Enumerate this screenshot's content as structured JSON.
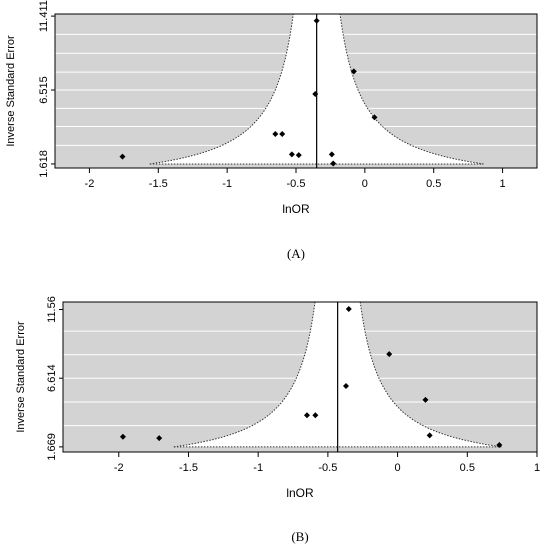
{
  "chart_data": [
    {
      "type": "scatter",
      "panel_label": "(A)",
      "xlabel": "lnOR",
      "ylabel": "Inverse Standard Error",
      "xlim": [
        -2.25,
        1.25
      ],
      "ylim": [
        1.35,
        11.55
      ],
      "xticks": [
        -2,
        -1.5,
        -1,
        -0.5,
        0,
        0.5,
        1
      ],
      "xtick_labels": [
        "-2",
        "-1.5",
        "-1",
        "-0.5",
        "0",
        "0.5",
        "1"
      ],
      "yticks": [
        1.618,
        6.515,
        11.411
      ],
      "ytick_labels": [
        "1.618",
        "6.515",
        "11.411"
      ],
      "gridlines_y": [
        2.85,
        4.1,
        5.3,
        6.515,
        7.7,
        8.95,
        10.2
      ],
      "funnel_center": -0.35,
      "funnel_base": 1.618,
      "grid": true,
      "shaded_region": "outside funnel",
      "points": [
        {
          "x": -1.76,
          "y": 2.1
        },
        {
          "x": -0.65,
          "y": 3.6
        },
        {
          "x": -0.6,
          "y": 3.6
        },
        {
          "x": -0.53,
          "y": 2.25
        },
        {
          "x": -0.48,
          "y": 2.2
        },
        {
          "x": -0.24,
          "y": 2.25
        },
        {
          "x": -0.23,
          "y": 1.65
        },
        {
          "x": -0.36,
          "y": 6.25
        },
        {
          "x": -0.35,
          "y": 11.1
        },
        {
          "x": -0.08,
          "y": 7.75
        },
        {
          "x": 0.07,
          "y": 4.7
        }
      ]
    },
    {
      "type": "scatter",
      "panel_label": "(B)",
      "xlabel": "lnOR",
      "ylabel": "Inverse Standard Error",
      "xlim": [
        -2.4,
        1.0
      ],
      "ylim": [
        1.3,
        12.1
      ],
      "xticks": [
        -2,
        -1.5,
        -1,
        -0.5,
        0,
        0.5,
        1
      ],
      "xtick_labels": [
        "-2",
        "-1.5",
        "-1",
        "-0.5",
        "0",
        "0.5",
        "1"
      ],
      "yticks": [
        1.669,
        6.614,
        11.56
      ],
      "ytick_labels": [
        "1.669",
        "6.614",
        "11.56"
      ],
      "gridlines_y": [
        3.2,
        4.9,
        6.614,
        8.3,
        10.0
      ],
      "funnel_center": -0.43,
      "funnel_base": 1.669,
      "grid": true,
      "shaded_region": "outside funnel",
      "points": [
        {
          "x": -1.97,
          "y": 2.4
        },
        {
          "x": -1.71,
          "y": 2.3
        },
        {
          "x": -0.65,
          "y": 3.95
        },
        {
          "x": -0.59,
          "y": 3.95
        },
        {
          "x": -0.37,
          "y": 6.05
        },
        {
          "x": -0.35,
          "y": 11.6
        },
        {
          "x": -0.06,
          "y": 8.35
        },
        {
          "x": 0.2,
          "y": 5.05
        },
        {
          "x": 0.23,
          "y": 2.5
        },
        {
          "x": 0.73,
          "y": 1.8
        }
      ]
    }
  ]
}
